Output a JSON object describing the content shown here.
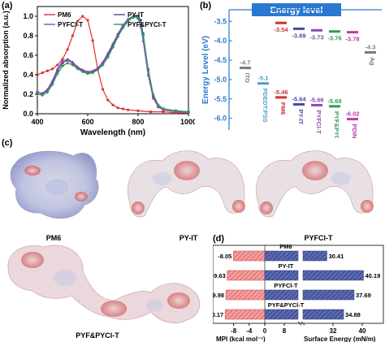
{
  "panels": {
    "a": {
      "label": "(a)",
      "chart_data": {
        "type": "line",
        "xlabel": "Wavelength (nm)",
        "ylabel": "Normalized absorption (a.u.)",
        "xlim": [
          400,
          1000
        ],
        "ylim": [
          0,
          1.1
        ],
        "xticks": [
          "400",
          "600",
          "800",
          "1000"
        ],
        "yticks": [
          "0.0",
          "0.2",
          "0.4",
          "0.6",
          "0.8",
          "1.0"
        ],
        "legend_position": "top",
        "series": [
          {
            "name": "PM6",
            "color": "#e03030",
            "marker": "circle",
            "x": [
              400,
              420,
              440,
              460,
              480,
              500,
              520,
              540,
              560,
              580,
              600,
              620,
              640,
              660,
              680,
              700,
              720,
              740,
              760,
              800,
              850,
              900,
              950,
              1000
            ],
            "y": [
              0.4,
              0.42,
              0.44,
              0.46,
              0.5,
              0.56,
              0.66,
              0.8,
              0.95,
              1.0,
              0.96,
              0.75,
              0.45,
              0.25,
              0.14,
              0.09,
              0.06,
              0.05,
              0.04,
              0.03,
              0.02,
              0.02,
              0.01,
              0.01
            ]
          },
          {
            "name": "PY-IT",
            "color": "#4a4aa8",
            "marker": "square",
            "x": [
              400,
              420,
              440,
              460,
              480,
              500,
              520,
              540,
              560,
              580,
              600,
              620,
              640,
              660,
              680,
              700,
              720,
              740,
              760,
              780,
              790,
              800,
              810,
              820,
              840,
              860,
              880,
              900,
              950,
              1000
            ],
            "y": [
              0.22,
              0.2,
              0.24,
              0.32,
              0.44,
              0.52,
              0.55,
              0.52,
              0.47,
              0.44,
              0.42,
              0.43,
              0.46,
              0.52,
              0.6,
              0.7,
              0.81,
              0.9,
              0.96,
              0.99,
              1.0,
              1.0,
              0.96,
              0.82,
              0.45,
              0.18,
              0.08,
              0.05,
              0.03,
              0.02
            ]
          },
          {
            "name": "PYFCl-T",
            "color": "#8a4ab0",
            "marker": "triangle",
            "x": [
              400,
              420,
              440,
              460,
              480,
              500,
              520,
              540,
              560,
              580,
              600,
              620,
              640,
              660,
              680,
              700,
              720,
              740,
              760,
              780,
              800,
              810,
              820,
              840,
              860,
              880,
              900,
              950,
              1000
            ],
            "y": [
              0.22,
              0.21,
              0.25,
              0.34,
              0.46,
              0.54,
              0.56,
              0.53,
              0.48,
              0.45,
              0.43,
              0.44,
              0.47,
              0.53,
              0.62,
              0.72,
              0.82,
              0.91,
              0.97,
              1.0,
              0.98,
              0.9,
              0.75,
              0.4,
              0.16,
              0.07,
              0.04,
              0.02,
              0.02
            ]
          },
          {
            "name": "PYF&PYCl-T",
            "color": "#2e9a5a",
            "marker": "diamond",
            "x": [
              400,
              420,
              440,
              460,
              480,
              500,
              520,
              540,
              560,
              580,
              600,
              620,
              640,
              660,
              680,
              700,
              720,
              740,
              760,
              780,
              790,
              800,
              810,
              820,
              840,
              860,
              880,
              900,
              950,
              1000
            ],
            "y": [
              0.2,
              0.19,
              0.22,
              0.3,
              0.41,
              0.49,
              0.52,
              0.5,
              0.46,
              0.43,
              0.41,
              0.42,
              0.45,
              0.5,
              0.58,
              0.68,
              0.79,
              0.88,
              0.95,
              0.99,
              1.0,
              0.99,
              0.93,
              0.8,
              0.46,
              0.2,
              0.09,
              0.05,
              0.03,
              0.02
            ]
          }
        ]
      }
    },
    "b": {
      "label": "(b)",
      "title": "Energy level",
      "ylabel": "Energy Level (eV)",
      "yticks": [
        "-3.5",
        "-4.0",
        "-4.5",
        "-5.0",
        "-5.5",
        "-6.0"
      ],
      "chart_data": {
        "type": "bar",
        "ylim": [
          -6.3,
          -3.2
        ],
        "categories": [
          "ITO",
          "PDEDT:PSS",
          "PM6",
          "PY-IT",
          "PYFCl-T",
          "PYF&PYCl-T",
          "PDINN",
          "Ag"
        ],
        "lumo": [
          null,
          null,
          -3.54,
          -3.69,
          -3.73,
          -3.76,
          -3.78,
          null
        ],
        "homo": [
          -4.7,
          -5.1,
          -5.46,
          -5.64,
          -5.66,
          -5.69,
          -6.02,
          -4.3
        ],
        "lumo_labels": [
          "",
          "",
          "-3.54",
          "-3.69",
          "-3.73",
          "-3.76",
          "-3.78",
          ""
        ],
        "homo_labels": [
          "-4.7",
          "-5.1",
          "-5.46",
          "-5.64",
          "-5.66",
          "-5.69",
          "-6.02",
          "-4.3"
        ],
        "colors": [
          "#7a7a7a",
          "#4aa0c8",
          "#d03030",
          "#4a4aa8",
          "#8a4ab0",
          "#2e9a5a",
          "#c03aa0",
          "#7a7a7a"
        ]
      }
    },
    "c": {
      "label": "(c)",
      "molecules": [
        "PM6",
        "PY-IT",
        "PYFCl-T",
        "PYF&PYCl-T"
      ]
    },
    "d": {
      "label": "(d)",
      "chart_data": {
        "type": "bar",
        "categories": [
          "PM6",
          "PY-IT",
          "PYFCl-T",
          "PYF&PYCl-T"
        ],
        "series": [
          {
            "name": "MPI",
            "values": [
              -8.05,
              -9.63,
              -9.98,
              -10.17
            ],
            "color": "#e87070"
          },
          {
            "name": "Surface Energy",
            "values": [
              30.41,
              40.19,
              37.69,
              34.88
            ],
            "color": "#3a4a9a"
          }
        ],
        "value_labels_left": [
          "-8.05",
          "-9.63",
          "-9.98",
          "-10.17"
        ],
        "value_labels_right": [
          "30.41",
          "40.19",
          "37.69",
          "34.88"
        ],
        "left_xlabel": "MPI (kcal mol⁻¹)",
        "right_xlabel": "Surface Energy (mN/m)",
        "left_ticks": [
          "-8",
          "-4",
          "0"
        ],
        "right_ticks": [
          "8",
          "32",
          "40"
        ]
      }
    }
  }
}
